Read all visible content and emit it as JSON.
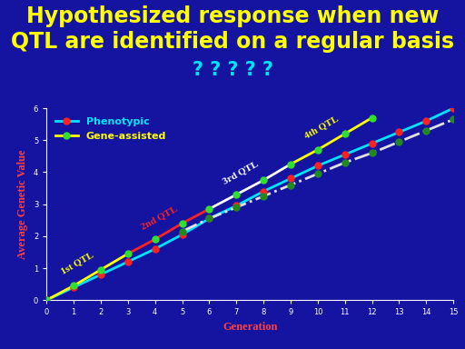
{
  "chart_data": {
    "type": "line",
    "title": "Hypothesized response when new QTL are identified on a regular basis",
    "subtitle": "? ? ? ? ?",
    "x_label": "Generation",
    "y_label": "Average Genetic Value",
    "xlim": [
      0,
      15
    ],
    "xticks": [
      0,
      1,
      2,
      3,
      4,
      5,
      6,
      7,
      8,
      9,
      10,
      11,
      12,
      13,
      14,
      15
    ],
    "ylim": [
      0,
      6
    ],
    "yticks": [
      0,
      1,
      2,
      3,
      4,
      5,
      6
    ],
    "grid": false,
    "legend": "upper left",
    "series": [
      {
        "name": "Phenotypic",
        "color": "#00e5ff",
        "marker_color": "#ff2020",
        "marker": "o",
        "line_style": "solid",
        "x": [
          0,
          1,
          2,
          3,
          4,
          5,
          6,
          7,
          8,
          9,
          10,
          11,
          12,
          13,
          14,
          15
        ],
        "values": [
          0,
          0.4,
          0.8,
          1.2,
          1.6,
          2.05,
          2.55,
          2.95,
          3.4,
          3.8,
          4.2,
          4.55,
          4.9,
          5.25,
          5.6,
          6.0
        ]
      },
      {
        "name": "Gene-assisted",
        "color": "#ffff00",
        "marker_color": "#30e030",
        "marker": "o",
        "line_style": "solid",
        "x": [
          0,
          1,
          2,
          3,
          4,
          5,
          6,
          7,
          8,
          9,
          10,
          11,
          12
        ],
        "values": [
          0,
          0.45,
          0.95,
          1.45,
          1.9,
          2.4,
          2.85,
          3.3,
          3.75,
          4.25,
          4.7,
          5.2,
          5.7
        ],
        "segments": [
          {
            "label": "1st QTL",
            "from": 0,
            "to": 3,
            "color": "#ffff00"
          },
          {
            "label": "2nd QTL",
            "from": 3,
            "to": 6,
            "color": "#ff2020"
          },
          {
            "label": "3rd QTL",
            "from": 6,
            "to": 9,
            "color": "#ffffff"
          },
          {
            "label": "4th QTL",
            "from": 9,
            "to": 12,
            "color": "#ffff00"
          }
        ]
      },
      {
        "name": null,
        "color": "#e0e0e0",
        "marker_color": "#208a20",
        "marker": "o",
        "line_style": "dashdot",
        "x": [
          5,
          6,
          7,
          8,
          9,
          10,
          11,
          12,
          13,
          14,
          15
        ],
        "values": [
          2.15,
          2.55,
          2.9,
          3.25,
          3.6,
          3.95,
          4.3,
          4.6,
          4.95,
          5.3,
          5.65
        ]
      }
    ]
  }
}
